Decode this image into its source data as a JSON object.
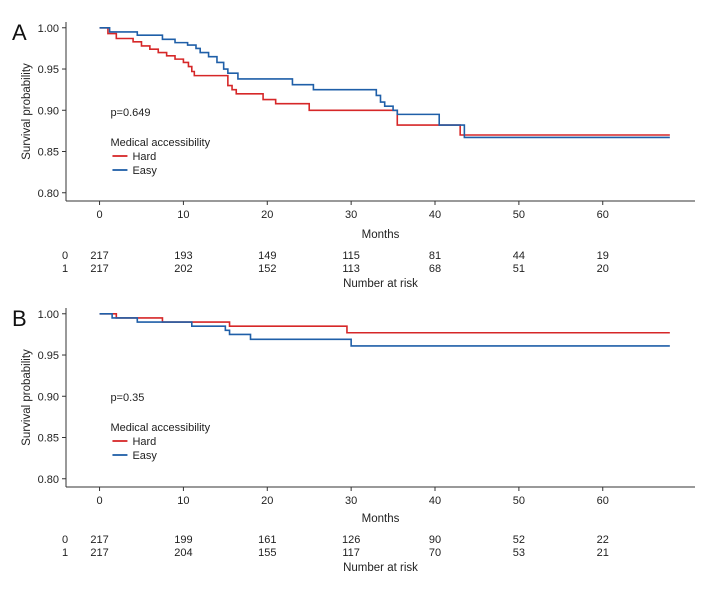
{
  "chart_data": [
    {
      "type": "line",
      "panel": "A",
      "ylabel": "Survival probability",
      "xlabel": "Months",
      "xlim": [
        -4,
        71
      ],
      "ylim": [
        0.79,
        1.007
      ],
      "xticks": [
        0,
        10,
        20,
        30,
        40,
        50,
        60
      ],
      "yticks": [
        "0.80",
        "0.85",
        "0.90",
        "0.95",
        "1.00"
      ],
      "pvalue": "p=0.649",
      "legend_title": "Medical accessibility",
      "series": [
        {
          "name": "Hard",
          "color": "#d62728",
          "steps": [
            [
              0,
              1.0
            ],
            [
              1,
              0.993
            ],
            [
              2,
              0.987
            ],
            [
              4,
              0.983
            ],
            [
              5,
              0.978
            ],
            [
              6,
              0.974
            ],
            [
              7,
              0.97
            ],
            [
              8,
              0.966
            ],
            [
              9,
              0.962
            ],
            [
              10,
              0.958
            ],
            [
              10.6,
              0.953
            ],
            [
              11,
              0.947
            ],
            [
              11.3,
              0.942
            ],
            [
              15.3,
              0.93
            ],
            [
              15.8,
              0.925
            ],
            [
              16.3,
              0.92
            ],
            [
              19.5,
              0.913
            ],
            [
              21,
              0.908
            ],
            [
              25,
              0.9
            ],
            [
              35.5,
              0.882
            ],
            [
              43,
              0.87
            ],
            [
              68,
              0.87
            ]
          ]
        },
        {
          "name": "Easy",
          "color": "#1f5fa8",
          "steps": [
            [
              0,
              1.0
            ],
            [
              1.2,
              0.995
            ],
            [
              4.5,
              0.991
            ],
            [
              7.5,
              0.986
            ],
            [
              9,
              0.982
            ],
            [
              10.5,
              0.979
            ],
            [
              11.5,
              0.975
            ],
            [
              12,
              0.97
            ],
            [
              13,
              0.965
            ],
            [
              14,
              0.958
            ],
            [
              14.8,
              0.95
            ],
            [
              15.3,
              0.945
            ],
            [
              16.5,
              0.938
            ],
            [
              23,
              0.931
            ],
            [
              25.5,
              0.925
            ],
            [
              33,
              0.918
            ],
            [
              33.5,
              0.91
            ],
            [
              34,
              0.905
            ],
            [
              35,
              0.9
            ],
            [
              35.5,
              0.895
            ],
            [
              40.5,
              0.882
            ],
            [
              43.5,
              0.867
            ],
            [
              68,
              0.867
            ]
          ]
        }
      ],
      "risk_table": {
        "title": "Number at risk",
        "rows": [
          {
            "label": "0",
            "values": [
              "217",
              "193",
              "149",
              "115",
              "81",
              "44",
              "19"
            ]
          },
          {
            "label": "1",
            "values": [
              "217",
              "202",
              "152",
              "113",
              "68",
              "51",
              "20"
            ]
          }
        ]
      }
    },
    {
      "type": "line",
      "panel": "B",
      "ylabel": "Survival probability",
      "xlabel": "Months",
      "xlim": [
        -4,
        71
      ],
      "ylim": [
        0.79,
        1.007
      ],
      "xticks": [
        0,
        10,
        20,
        30,
        40,
        50,
        60
      ],
      "yticks": [
        "0.80",
        "0.85",
        "0.90",
        "0.95",
        "1.00"
      ],
      "pvalue": "p=0.35",
      "legend_title": "Medical accessibility",
      "series": [
        {
          "name": "Hard",
          "color": "#d62728",
          "steps": [
            [
              0,
              1.0
            ],
            [
              2,
              0.995
            ],
            [
              7.5,
              0.99
            ],
            [
              15.5,
              0.985
            ],
            [
              29.5,
              0.977
            ],
            [
              68,
              0.977
            ]
          ]
        },
        {
          "name": "Easy",
          "color": "#1f5fa8",
          "steps": [
            [
              0,
              1.0
            ],
            [
              1.5,
              0.995
            ],
            [
              4.5,
              0.99
            ],
            [
              11,
              0.985
            ],
            [
              15,
              0.98
            ],
            [
              15.5,
              0.975
            ],
            [
              18,
              0.969
            ],
            [
              30,
              0.961
            ],
            [
              68,
              0.961
            ]
          ]
        }
      ],
      "risk_table": {
        "title": "Number at risk",
        "rows": [
          {
            "label": "0",
            "values": [
              "217",
              "199",
              "161",
              "126",
              "90",
              "52",
              "22"
            ]
          },
          {
            "label": "1",
            "values": [
              "217",
              "204",
              "155",
              "117",
              "70",
              "53",
              "21"
            ]
          }
        ]
      }
    }
  ]
}
